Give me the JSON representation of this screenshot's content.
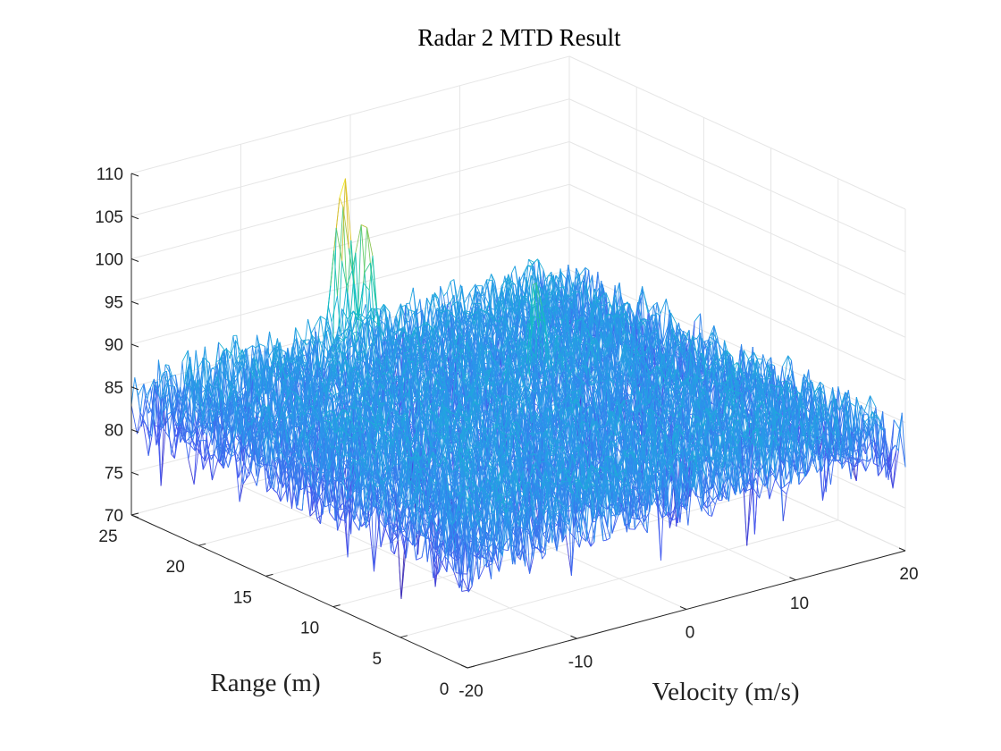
{
  "chart_data": {
    "type": "surface",
    "title": "Radar 2 MTD Result",
    "xlabel": "Velocity (m/s)",
    "ylabel": "Range (m)",
    "zlabel": "",
    "xlim": [
      -20,
      20
    ],
    "ylim": [
      0,
      25
    ],
    "zlim": [
      70,
      110
    ],
    "xticks": [
      -20,
      -10,
      0,
      10,
      20
    ],
    "yticks": [
      0,
      5,
      10,
      15,
      20,
      25
    ],
    "zticks": [
      70,
      75,
      80,
      85,
      90,
      95,
      100,
      105,
      110
    ],
    "grid": true,
    "colormap": "parula",
    "noise_floor_mean_db": 84,
    "noise_floor_spread_db": 8,
    "peaks": [
      {
        "velocity": -2,
        "range": 24,
        "value": 104
      },
      {
        "velocity": -1,
        "range": 23,
        "value": 101
      },
      {
        "velocity": 6,
        "range": 16,
        "value": 96
      }
    ]
  }
}
